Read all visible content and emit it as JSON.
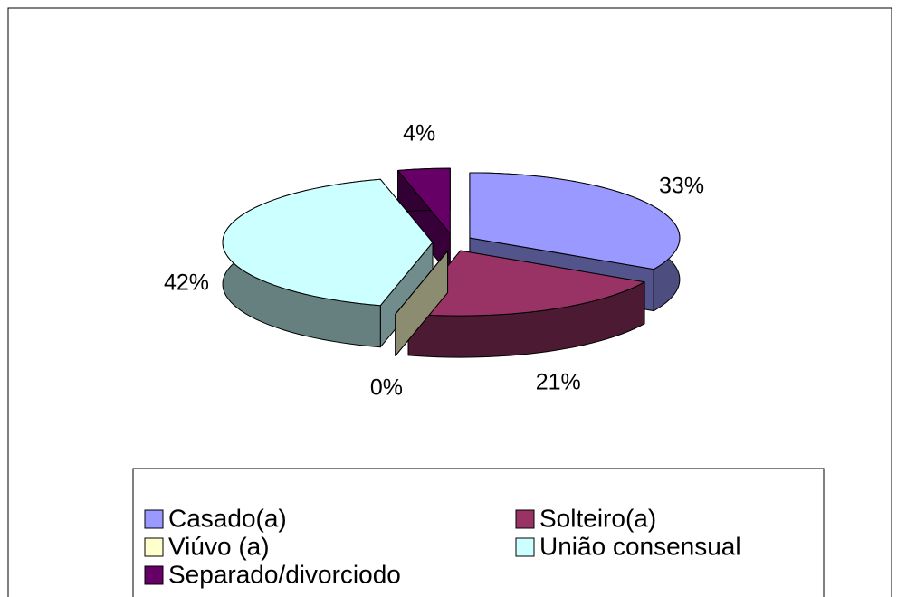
{
  "chart_data": {
    "type": "pie3d",
    "categories": [
      "Casado(a)",
      "Solteiro(a)",
      "Viúvo (a)",
      "União consensual",
      "Separado/divorciodo"
    ],
    "values": [
      33,
      21,
      0,
      42,
      4
    ],
    "value_labels": [
      "33%",
      "21%",
      "0%",
      "42%",
      "4%"
    ],
    "colors": [
      "#9999ff",
      "#993366",
      "#ffffcc",
      "#ccffff",
      "#660066"
    ],
    "legend": "bottom"
  }
}
